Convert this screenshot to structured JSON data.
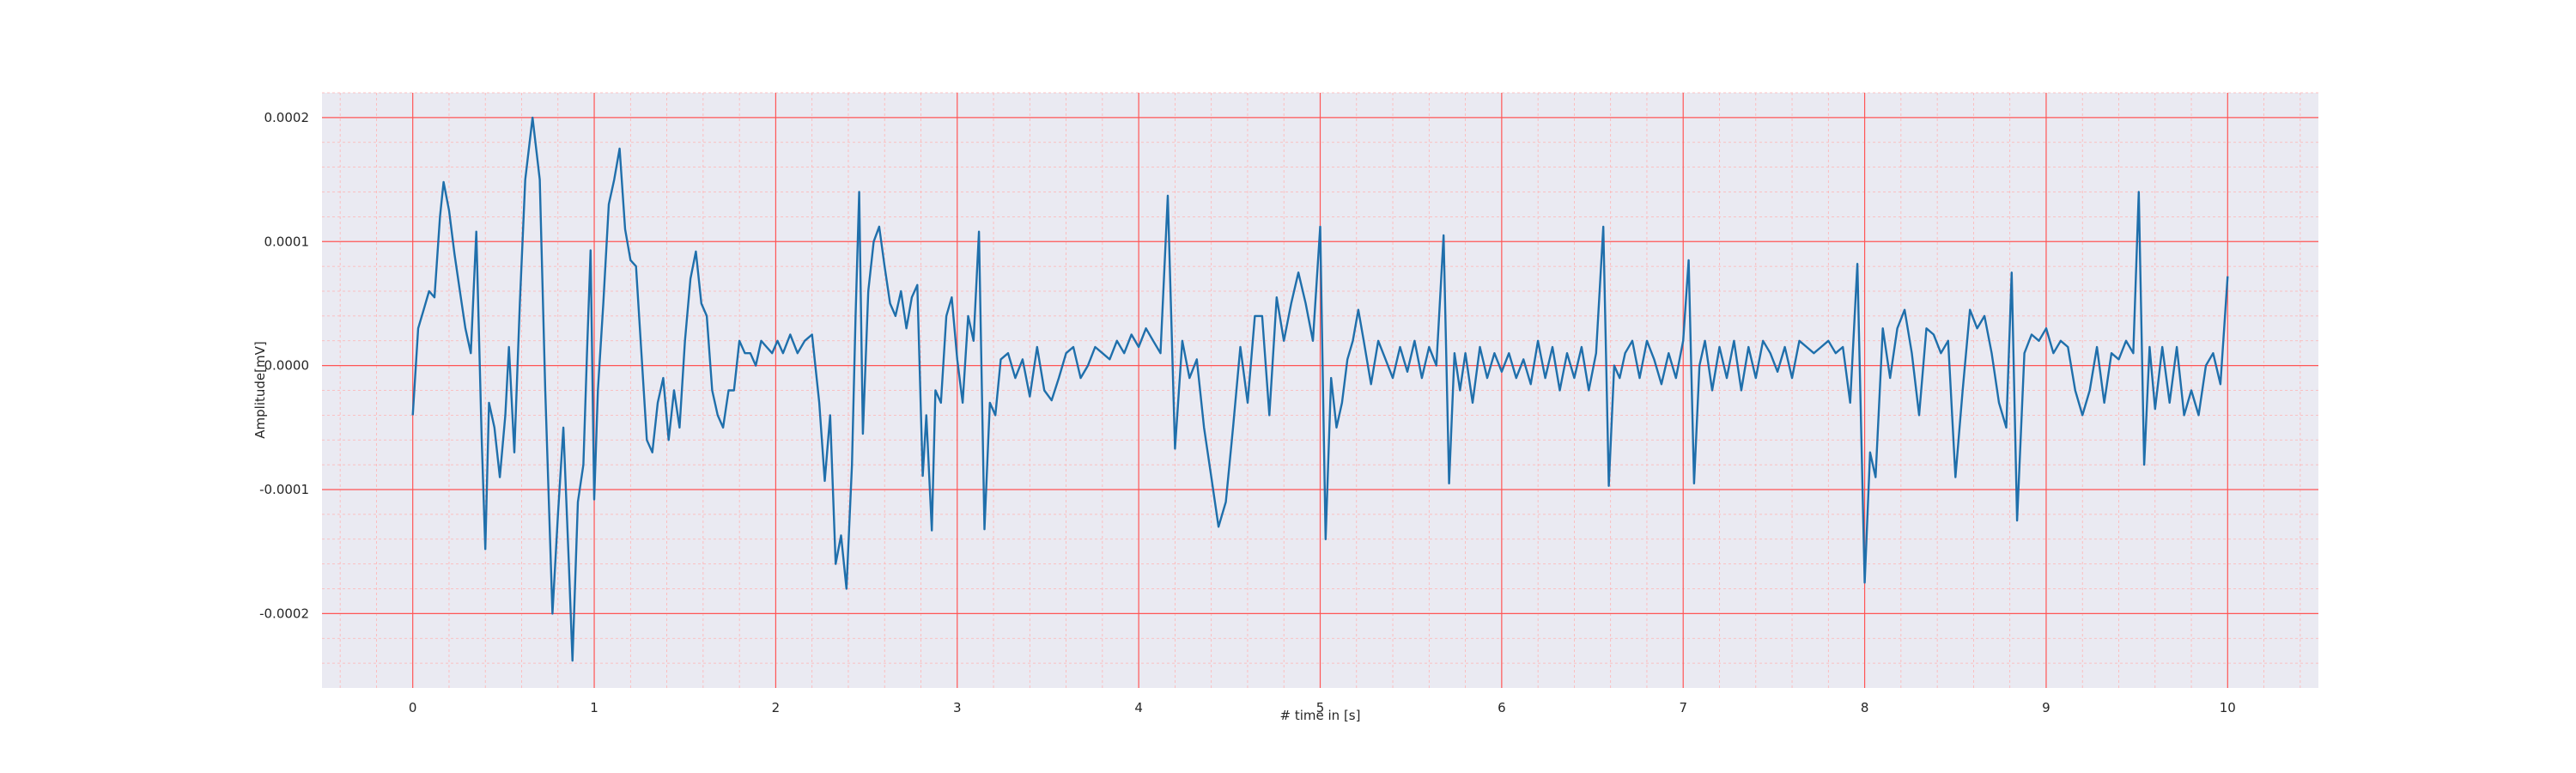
{
  "chart_data": {
    "type": "line",
    "title": "",
    "xlabel": "# time in [s]",
    "ylabel": "Amplitude[mV]",
    "xlim": [
      -0.5,
      10.5
    ],
    "ylim": [
      -0.00026,
      0.00022
    ],
    "x_ticks": [
      0,
      1,
      2,
      3,
      4,
      5,
      6,
      7,
      8,
      9,
      10
    ],
    "x_tick_labels": [
      "0",
      "1",
      "2",
      "3",
      "4",
      "5",
      "6",
      "7",
      "8",
      "9",
      "10"
    ],
    "y_ticks": [
      -0.0002,
      -0.0001,
      0.0,
      0.0001,
      0.0002
    ],
    "y_tick_labels": [
      "-0.0002",
      "-0.0001",
      "0.0000",
      "0.0001",
      "0.0002"
    ],
    "grid": "major and minor",
    "colors": {
      "line": "#1f6fab",
      "grid_major": "#ff5555",
      "grid_minor": "#ffb3b3",
      "background": "#eaeaf2"
    },
    "series": [
      {
        "values": [
          [
            0.0,
            -4e-05
          ],
          [
            0.03,
            3e-05
          ],
          [
            0.06,
            4.5e-05
          ],
          [
            0.09,
            6e-05
          ],
          [
            0.12,
            5.5e-05
          ],
          [
            0.15,
            0.00012
          ],
          [
            0.17,
            0.000148
          ],
          [
            0.2,
            0.000125
          ],
          [
            0.23,
            9e-05
          ],
          [
            0.26,
            6e-05
          ],
          [
            0.29,
            3e-05
          ],
          [
            0.32,
            1e-05
          ],
          [
            0.35,
            0.000108
          ],
          [
            0.38,
            -6e-05
          ],
          [
            0.4,
            -0.000148
          ],
          [
            0.42,
            -3e-05
          ],
          [
            0.45,
            -5e-05
          ],
          [
            0.48,
            -9e-05
          ],
          [
            0.51,
            -4e-05
          ],
          [
            0.53,
            1.5e-05
          ],
          [
            0.56,
            -7e-05
          ],
          [
            0.59,
            5e-05
          ],
          [
            0.62,
            0.00015
          ],
          [
            0.66,
            0.0002
          ],
          [
            0.7,
            0.00015
          ],
          [
            0.73,
            -2e-05
          ],
          [
            0.77,
            -0.0002
          ],
          [
            0.8,
            -0.00012
          ],
          [
            0.83,
            -5e-05
          ],
          [
            0.86,
            -0.00016
          ],
          [
            0.88,
            -0.000238
          ],
          [
            0.91,
            -0.00011
          ],
          [
            0.94,
            -8e-05
          ],
          [
            0.96,
            1e-05
          ],
          [
            0.98,
            9.3e-05
          ],
          [
            1.0,
            -0.000108
          ],
          [
            1.02,
            -2e-05
          ],
          [
            1.05,
            5e-05
          ],
          [
            1.08,
            0.00013
          ],
          [
            1.11,
            0.00015
          ],
          [
            1.14,
            0.000175
          ],
          [
            1.17,
            0.00011
          ],
          [
            1.2,
            8.5e-05
          ],
          [
            1.23,
            8e-05
          ],
          [
            1.26,
            1e-05
          ],
          [
            1.29,
            -6e-05
          ],
          [
            1.32,
            -7e-05
          ],
          [
            1.35,
            -3e-05
          ],
          [
            1.38,
            -1e-05
          ],
          [
            1.41,
            -6e-05
          ],
          [
            1.44,
            -2e-05
          ],
          [
            1.47,
            -5e-05
          ],
          [
            1.5,
            2e-05
          ],
          [
            1.53,
            7e-05
          ],
          [
            1.56,
            9.2e-05
          ],
          [
            1.59,
            5e-05
          ],
          [
            1.62,
            4e-05
          ],
          [
            1.65,
            -2e-05
          ],
          [
            1.68,
            -4e-05
          ],
          [
            1.71,
            -5e-05
          ],
          [
            1.74,
            -2e-05
          ],
          [
            1.77,
            -2e-05
          ],
          [
            1.8,
            2e-05
          ],
          [
            1.83,
            1e-05
          ],
          [
            1.86,
            1e-05
          ],
          [
            1.89,
            0.0
          ],
          [
            1.92,
            2e-05
          ],
          [
            1.95,
            1.5e-05
          ],
          [
            1.98,
            1e-05
          ],
          [
            2.01,
            2e-05
          ],
          [
            2.04,
            1e-05
          ],
          [
            2.08,
            2.5e-05
          ],
          [
            2.12,
            1e-05
          ],
          [
            2.16,
            2e-05
          ],
          [
            2.2,
            2.5e-05
          ],
          [
            2.24,
            -3e-05
          ],
          [
            2.27,
            -9.3e-05
          ],
          [
            2.3,
            -4e-05
          ],
          [
            2.33,
            -0.00016
          ],
          [
            2.36,
            -0.000137
          ],
          [
            2.39,
            -0.00018
          ],
          [
            2.42,
            -8e-05
          ],
          [
            2.44,
            4e-05
          ],
          [
            2.46,
            0.00014
          ],
          [
            2.48,
            -5.5e-05
          ],
          [
            2.51,
            6e-05
          ],
          [
            2.54,
            0.0001
          ],
          [
            2.57,
            0.000112
          ],
          [
            2.6,
            8e-05
          ],
          [
            2.63,
            5e-05
          ],
          [
            2.66,
            4e-05
          ],
          [
            2.69,
            6e-05
          ],
          [
            2.72,
            3e-05
          ],
          [
            2.75,
            5.5e-05
          ],
          [
            2.78,
            6.5e-05
          ],
          [
            2.81,
            -8.9e-05
          ],
          [
            2.83,
            -4e-05
          ],
          [
            2.86,
            -0.000133
          ],
          [
            2.88,
            -2e-05
          ],
          [
            2.91,
            -3e-05
          ],
          [
            2.94,
            4e-05
          ],
          [
            2.97,
            5.5e-05
          ],
          [
            3.0,
            5e-06
          ],
          [
            3.03,
            -3e-05
          ],
          [
            3.06,
            4e-05
          ],
          [
            3.09,
            2e-05
          ],
          [
            3.12,
            0.000108
          ],
          [
            3.15,
            -0.000132
          ],
          [
            3.18,
            -3e-05
          ],
          [
            3.21,
            -4e-05
          ],
          [
            3.24,
            5e-06
          ],
          [
            3.28,
            1e-05
          ],
          [
            3.32,
            -1e-05
          ],
          [
            3.36,
            5e-06
          ],
          [
            3.4,
            -2.5e-05
          ],
          [
            3.44,
            1.5e-05
          ],
          [
            3.48,
            -2e-05
          ],
          [
            3.52,
            -2.8e-05
          ],
          [
            3.56,
            -1e-05
          ],
          [
            3.6,
            1e-05
          ],
          [
            3.64,
            1.5e-05
          ],
          [
            3.68,
            -1e-05
          ],
          [
            3.72,
            0.0
          ],
          [
            3.76,
            1.5e-05
          ],
          [
            3.8,
            1e-05
          ],
          [
            3.84,
            5e-06
          ],
          [
            3.88,
            2e-05
          ],
          [
            3.92,
            1e-05
          ],
          [
            3.96,
            2.5e-05
          ],
          [
            4.0,
            1.5e-05
          ],
          [
            4.04,
            3e-05
          ],
          [
            4.08,
            2e-05
          ],
          [
            4.12,
            1e-05
          ],
          [
            4.16,
            0.000137
          ],
          [
            4.2,
            -6.7e-05
          ],
          [
            4.24,
            2e-05
          ],
          [
            4.28,
            -1e-05
          ],
          [
            4.32,
            5e-06
          ],
          [
            4.36,
            -5e-05
          ],
          [
            4.4,
            -9e-05
          ],
          [
            4.44,
            -0.00013
          ],
          [
            4.48,
            -0.00011
          ],
          [
            4.52,
            -5e-05
          ],
          [
            4.56,
            1.5e-05
          ],
          [
            4.6,
            -3e-05
          ],
          [
            4.64,
            4e-05
          ],
          [
            4.68,
            4e-05
          ],
          [
            4.72,
            -4e-05
          ],
          [
            4.76,
            5.5e-05
          ],
          [
            4.8,
            2e-05
          ],
          [
            4.84,
            5e-05
          ],
          [
            4.88,
            7.5e-05
          ],
          [
            4.92,
            5e-05
          ],
          [
            4.96,
            2e-05
          ],
          [
            5.0,
            0.000112
          ],
          [
            5.03,
            -0.00014
          ],
          [
            5.06,
            -1e-05
          ],
          [
            5.09,
            -5e-05
          ],
          [
            5.12,
            -3e-05
          ],
          [
            5.15,
            5e-06
          ],
          [
            5.18,
            2e-05
          ],
          [
            5.21,
            4.5e-05
          ],
          [
            5.24,
            2e-05
          ],
          [
            5.28,
            -1.5e-05
          ],
          [
            5.32,
            2e-05
          ],
          [
            5.36,
            5e-06
          ],
          [
            5.4,
            -1e-05
          ],
          [
            5.44,
            1.5e-05
          ],
          [
            5.48,
            -5e-06
          ],
          [
            5.52,
            2e-05
          ],
          [
            5.56,
            -1e-05
          ],
          [
            5.6,
            1.5e-05
          ],
          [
            5.64,
            0.0
          ],
          [
            5.68,
            0.000105
          ],
          [
            5.71,
            -9.5e-05
          ],
          [
            5.74,
            1e-05
          ],
          [
            5.77,
            -2e-05
          ],
          [
            5.8,
            1e-05
          ],
          [
            5.84,
            -3e-05
          ],
          [
            5.88,
            1.5e-05
          ],
          [
            5.92,
            -1e-05
          ],
          [
            5.96,
            1e-05
          ],
          [
            6.0,
            -5e-06
          ],
          [
            6.04,
            1e-05
          ],
          [
            6.08,
            -1e-05
          ],
          [
            6.12,
            5e-06
          ],
          [
            6.16,
            -1.5e-05
          ],
          [
            6.2,
            2e-05
          ],
          [
            6.24,
            -1e-05
          ],
          [
            6.28,
            1.5e-05
          ],
          [
            6.32,
            -2e-05
          ],
          [
            6.36,
            1e-05
          ],
          [
            6.4,
            -1e-05
          ],
          [
            6.44,
            1.5e-05
          ],
          [
            6.48,
            -2e-05
          ],
          [
            6.52,
            1e-05
          ],
          [
            6.56,
            0.000112
          ],
          [
            6.59,
            -9.7e-05
          ],
          [
            6.62,
            0.0
          ],
          [
            6.65,
            -1e-05
          ],
          [
            6.68,
            1e-05
          ],
          [
            6.72,
            2e-05
          ],
          [
            6.76,
            -1e-05
          ],
          [
            6.8,
            2e-05
          ],
          [
            6.84,
            5e-06
          ],
          [
            6.88,
            -1.5e-05
          ],
          [
            6.92,
            1e-05
          ],
          [
            6.96,
            -1e-05
          ],
          [
            7.0,
            2e-05
          ],
          [
            7.03,
            8.5e-05
          ],
          [
            7.06,
            -9.5e-05
          ],
          [
            7.09,
            0.0
          ],
          [
            7.12,
            2e-05
          ],
          [
            7.16,
            -2e-05
          ],
          [
            7.2,
            1.5e-05
          ],
          [
            7.24,
            -1e-05
          ],
          [
            7.28,
            2e-05
          ],
          [
            7.32,
            -2e-05
          ],
          [
            7.36,
            1.5e-05
          ],
          [
            7.4,
            -1e-05
          ],
          [
            7.44,
            2e-05
          ],
          [
            7.48,
            1e-05
          ],
          [
            7.52,
            -5e-06
          ],
          [
            7.56,
            1.5e-05
          ],
          [
            7.6,
            -1e-05
          ],
          [
            7.64,
            2e-05
          ],
          [
            7.68,
            1.5e-05
          ],
          [
            7.72,
            1e-05
          ],
          [
            7.76,
            1.5e-05
          ],
          [
            7.8,
            2e-05
          ],
          [
            7.84,
            1e-05
          ],
          [
            7.88,
            1.5e-05
          ],
          [
            7.92,
            -3e-05
          ],
          [
            7.96,
            8.2e-05
          ],
          [
            8.0,
            -0.000175
          ],
          [
            8.03,
            -7e-05
          ],
          [
            8.06,
            -9e-05
          ],
          [
            8.1,
            3e-05
          ],
          [
            8.14,
            -1e-05
          ],
          [
            8.18,
            3e-05
          ],
          [
            8.22,
            4.5e-05
          ],
          [
            8.26,
            1e-05
          ],
          [
            8.3,
            -4e-05
          ],
          [
            8.34,
            3e-05
          ],
          [
            8.38,
            2.5e-05
          ],
          [
            8.42,
            1e-05
          ],
          [
            8.46,
            2e-05
          ],
          [
            8.5,
            -9e-05
          ],
          [
            8.54,
            -2e-05
          ],
          [
            8.58,
            4.5e-05
          ],
          [
            8.62,
            3e-05
          ],
          [
            8.66,
            4e-05
          ],
          [
            8.7,
            1e-05
          ],
          [
            8.74,
            -3e-05
          ],
          [
            8.78,
            -5e-05
          ],
          [
            8.81,
            7.5e-05
          ],
          [
            8.84,
            -0.000125
          ],
          [
            8.88,
            1e-05
          ],
          [
            8.92,
            2.5e-05
          ],
          [
            8.96,
            2e-05
          ],
          [
            9.0,
            3e-05
          ],
          [
            9.04,
            1e-05
          ],
          [
            9.08,
            2e-05
          ],
          [
            9.12,
            1.5e-05
          ],
          [
            9.16,
            -2e-05
          ],
          [
            9.2,
            -4e-05
          ],
          [
            9.24,
            -2e-05
          ],
          [
            9.28,
            1.5e-05
          ],
          [
            9.32,
            -3e-05
          ],
          [
            9.36,
            1e-05
          ],
          [
            9.4,
            5e-06
          ],
          [
            9.44,
            2e-05
          ],
          [
            9.48,
            1e-05
          ],
          [
            9.51,
            0.00014
          ],
          [
            9.54,
            -8e-05
          ],
          [
            9.57,
            1.5e-05
          ],
          [
            9.6,
            -3.5e-05
          ],
          [
            9.64,
            1.5e-05
          ],
          [
            9.68,
            -3e-05
          ],
          [
            9.72,
            1.5e-05
          ],
          [
            9.76,
            -4e-05
          ],
          [
            9.8,
            -2e-05
          ],
          [
            9.84,
            -4e-05
          ],
          [
            9.88,
            0.0
          ],
          [
            9.92,
            1e-05
          ],
          [
            9.96,
            -1.5e-05
          ],
          [
            10.0,
            7.2e-05
          ]
        ]
      }
    ]
  }
}
